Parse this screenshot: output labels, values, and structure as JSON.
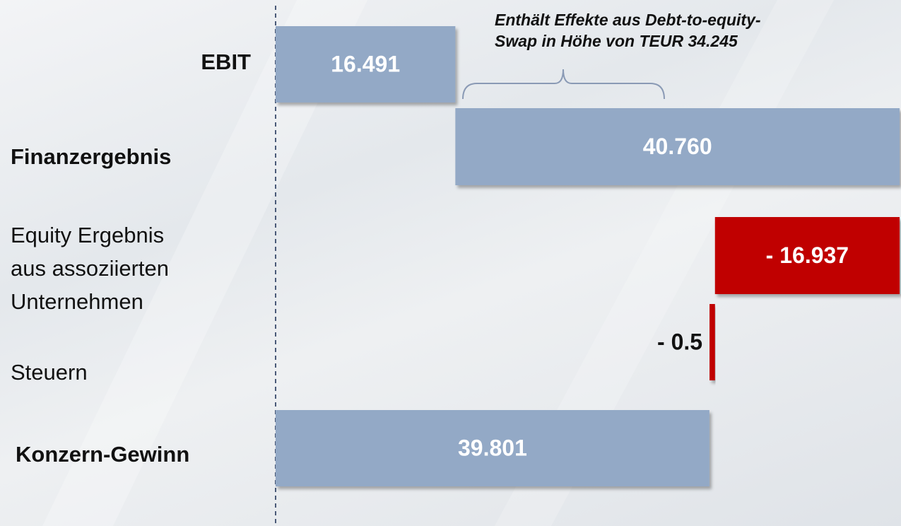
{
  "chart_data": {
    "type": "waterfall",
    "categories": [
      "EBIT",
      "Finanzergebnis",
      "Equity Ergebnis aus assoziierten Unternehmen",
      "Steuern",
      "Konzern-Gewinn"
    ],
    "values": [
      16.491,
      40.76,
      -16.937,
      -0.5,
      39.801
    ],
    "value_labels": [
      "16.491",
      "40.760",
      "- 16.937",
      "- 0.5",
      "39.801"
    ],
    "colors": {
      "positive": "#93a9c6",
      "negative": "#c00000"
    },
    "annotation": [
      "Enthält Effekte aus Debt-to-equity-",
      "Swap in Höhe von TEUR 34.245"
    ]
  }
}
